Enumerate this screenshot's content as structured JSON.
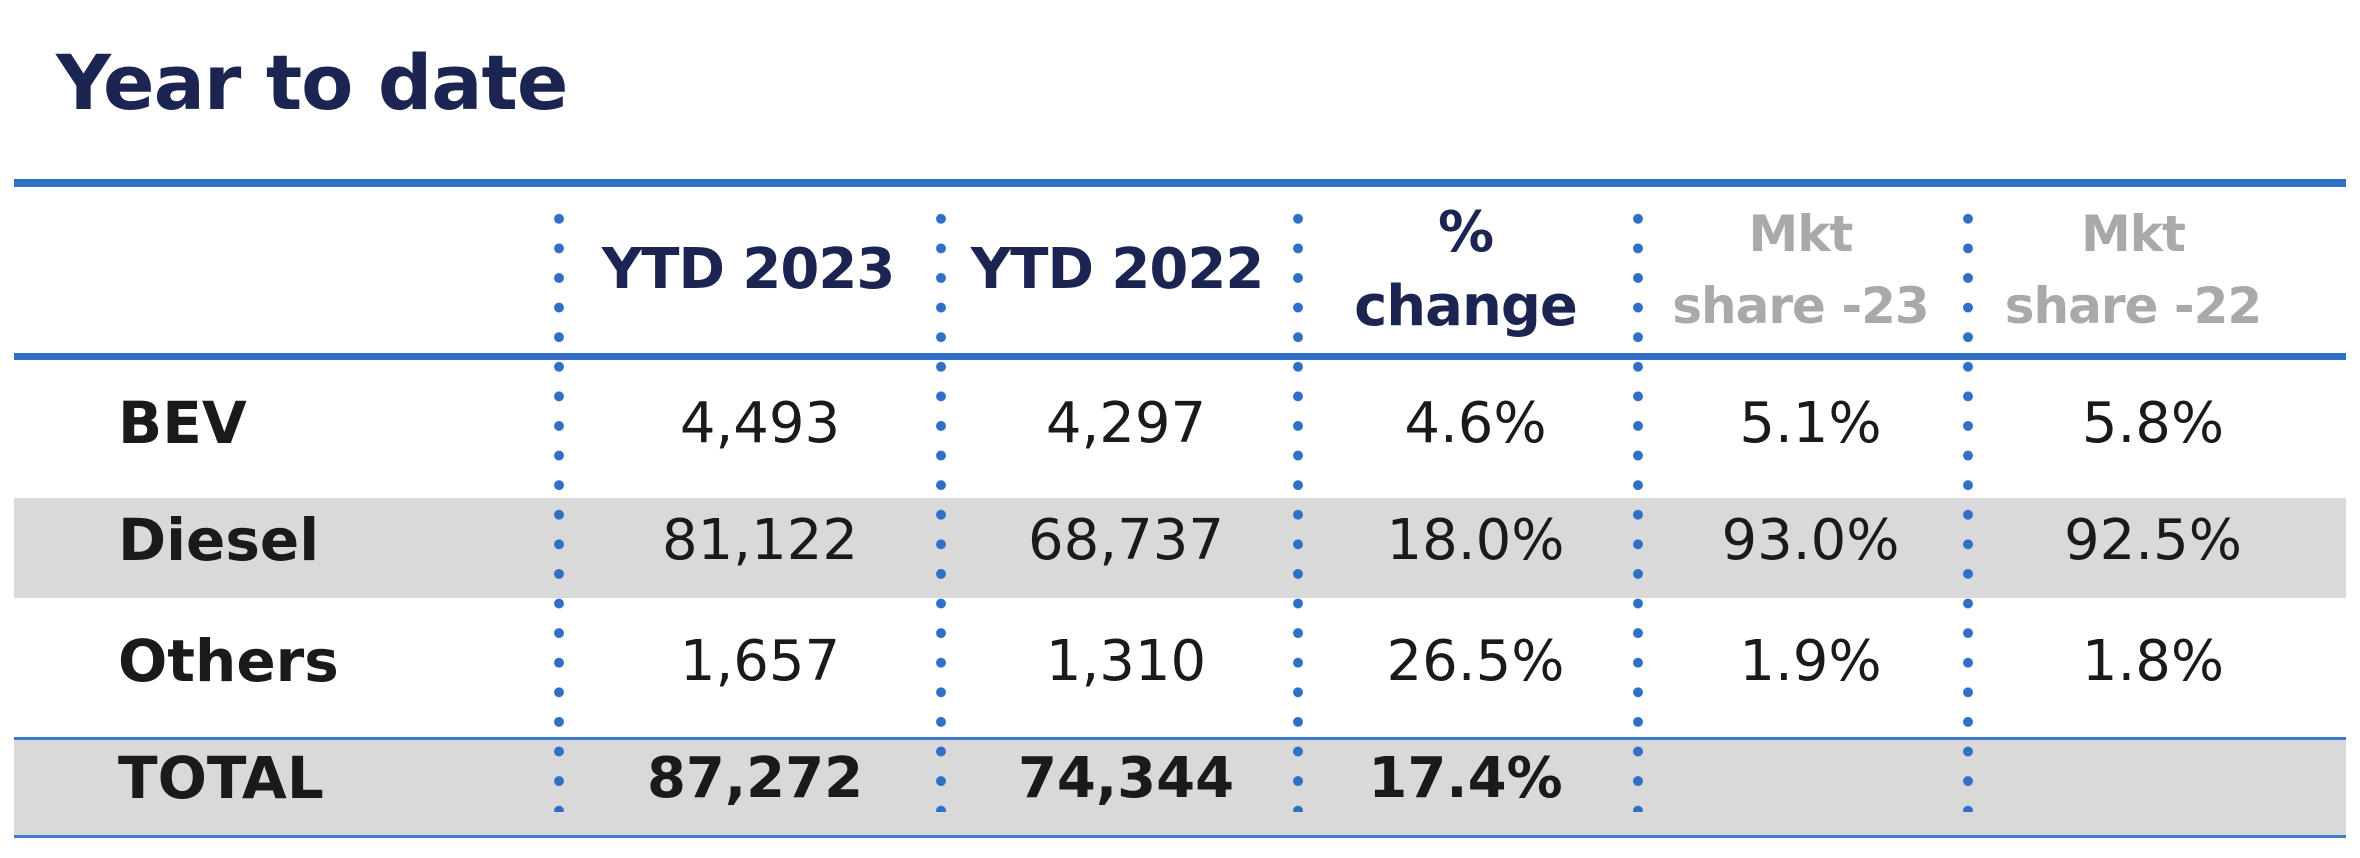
{
  "title": "Year to date",
  "headers": {
    "ytd2023": "YTD 2023",
    "ytd2022": "YTD 2022",
    "pct_line1": "%",
    "pct_line2": "change",
    "share23_line1": "Mkt",
    "share23_line2": "share -23",
    "share22_line1": "Mkt",
    "share22_line2": "share -22"
  },
  "rows": [
    {
      "label": "BEV",
      "ytd2023": "4,493",
      "ytd2022": "4,297",
      "change": "4.6%",
      "share23": "5.1%",
      "share22": "5.8%"
    },
    {
      "label": "Diesel",
      "ytd2023": "81,122",
      "ytd2022": "68,737",
      "change": "18.0%",
      "share23": "93.0%",
      "share22": "92.5%"
    },
    {
      "label": "Others",
      "ytd2023": "1,657",
      "ytd2022": "1,310",
      "change": "26.5%",
      "share23": "1.9%",
      "share22": "1.8%"
    }
  ],
  "total": {
    "label": "TOTAL",
    "ytd2023": "87,272",
    "ytd2022": "74,344",
    "change": "17.4%"
  },
  "colors": {
    "title": "#1c2452",
    "rule": "#2f6fc6",
    "band": "#d9d9d9",
    "muted_header": "#a9a9a9"
  }
}
